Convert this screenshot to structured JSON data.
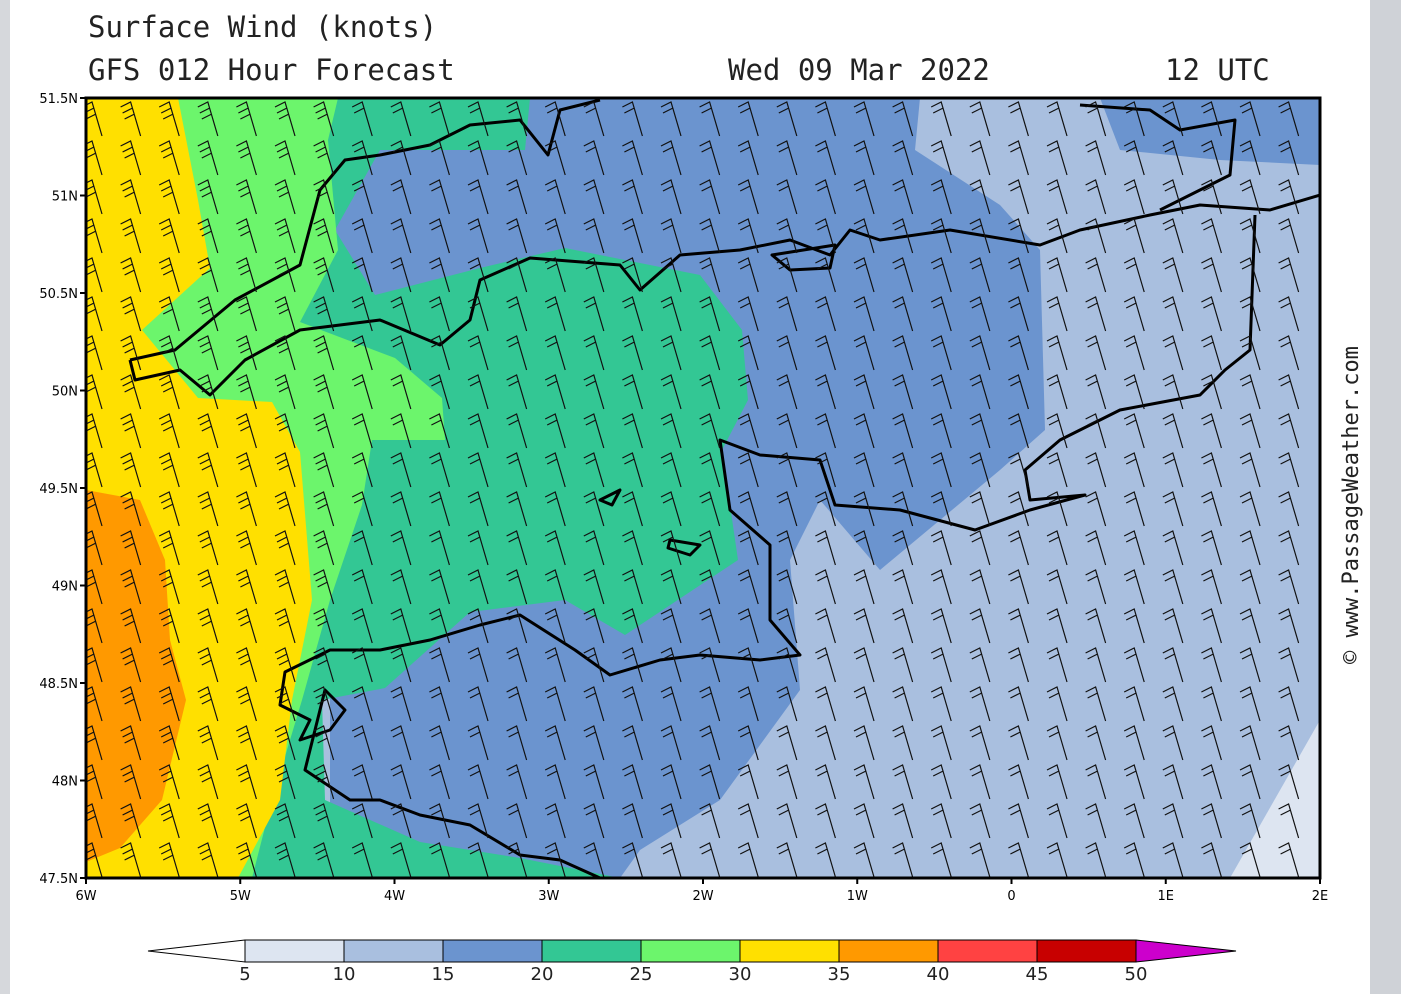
{
  "header": {
    "title": "Surface Wind (knots)",
    "subtitle": "GFS 012 Hour Forecast",
    "date": "Wed 09 Mar 2022",
    "time": "12 UTC"
  },
  "map": {
    "lat_labels": [
      "51.5N",
      "51N",
      "50.5N",
      "50N",
      "49.5N",
      "49N",
      "48.5N",
      "48N",
      "47.5N"
    ],
    "lon_labels": [
      "6W",
      "5W",
      "4W",
      "3W",
      "2W",
      "1W",
      "0",
      "1E",
      "2E"
    ]
  },
  "legend": {
    "levels": [
      5,
      10,
      15,
      20,
      25,
      30,
      35,
      40,
      45,
      50
    ],
    "colors": [
      "#dde5f1",
      "#a9bfdf",
      "#6b94cf",
      "#33c794",
      "#6cf56c",
      "#ffe000",
      "#ff9900",
      "#ff4242",
      "#c80000"
    ],
    "under_color": "#ffffff",
    "over_color": "#cc00cc"
  },
  "credit": "© www.PassageWeather.com"
}
